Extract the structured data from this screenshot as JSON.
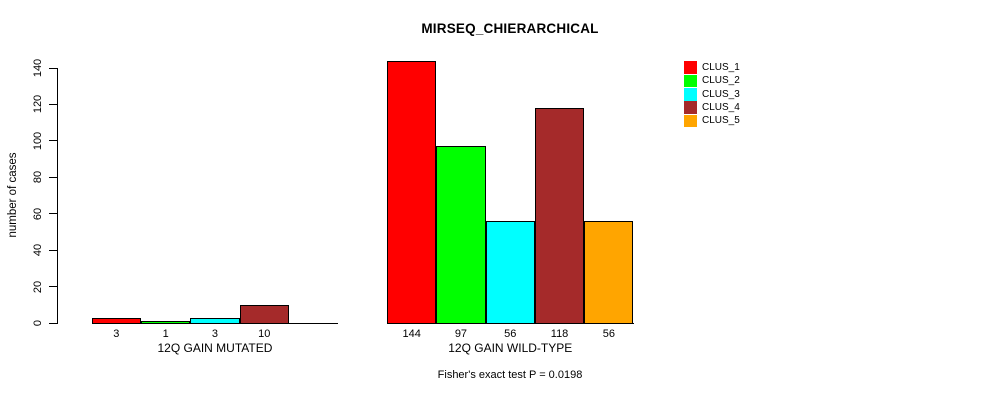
{
  "footer": "Fisher's exact test P = 0.0198",
  "chart_data": {
    "type": "bar",
    "title": "MIRSEQ_CHIERARCHICAL",
    "xlabel": "",
    "ylabel": "number of cases",
    "ylim": [
      0,
      140
    ],
    "yticks": [
      0,
      20,
      40,
      60,
      80,
      100,
      120,
      140
    ],
    "grid": false,
    "legend_position": "right",
    "series": [
      {
        "name": "CLUS_1",
        "color": "#FF0000"
      },
      {
        "name": "CLUS_2",
        "color": "#00FF00"
      },
      {
        "name": "CLUS_3",
        "color": "#00FFFF"
      },
      {
        "name": "CLUS_4",
        "color": "#A52A2A"
      },
      {
        "name": "CLUS_5",
        "color": "#FFA500"
      }
    ],
    "groups": [
      {
        "label": "12Q GAIN MUTATED",
        "values": [
          3,
          1,
          3,
          10,
          0
        ],
        "bar_labels": [
          "3",
          "1",
          "3",
          "10",
          ""
        ]
      },
      {
        "label": "12Q GAIN WILD-TYPE",
        "values": [
          144,
          97,
          56,
          118,
          56
        ],
        "bar_labels": [
          "144",
          "97",
          "56",
          "118",
          "56"
        ]
      }
    ],
    "annotation": "Fisher's exact test P = 0.0198"
  }
}
